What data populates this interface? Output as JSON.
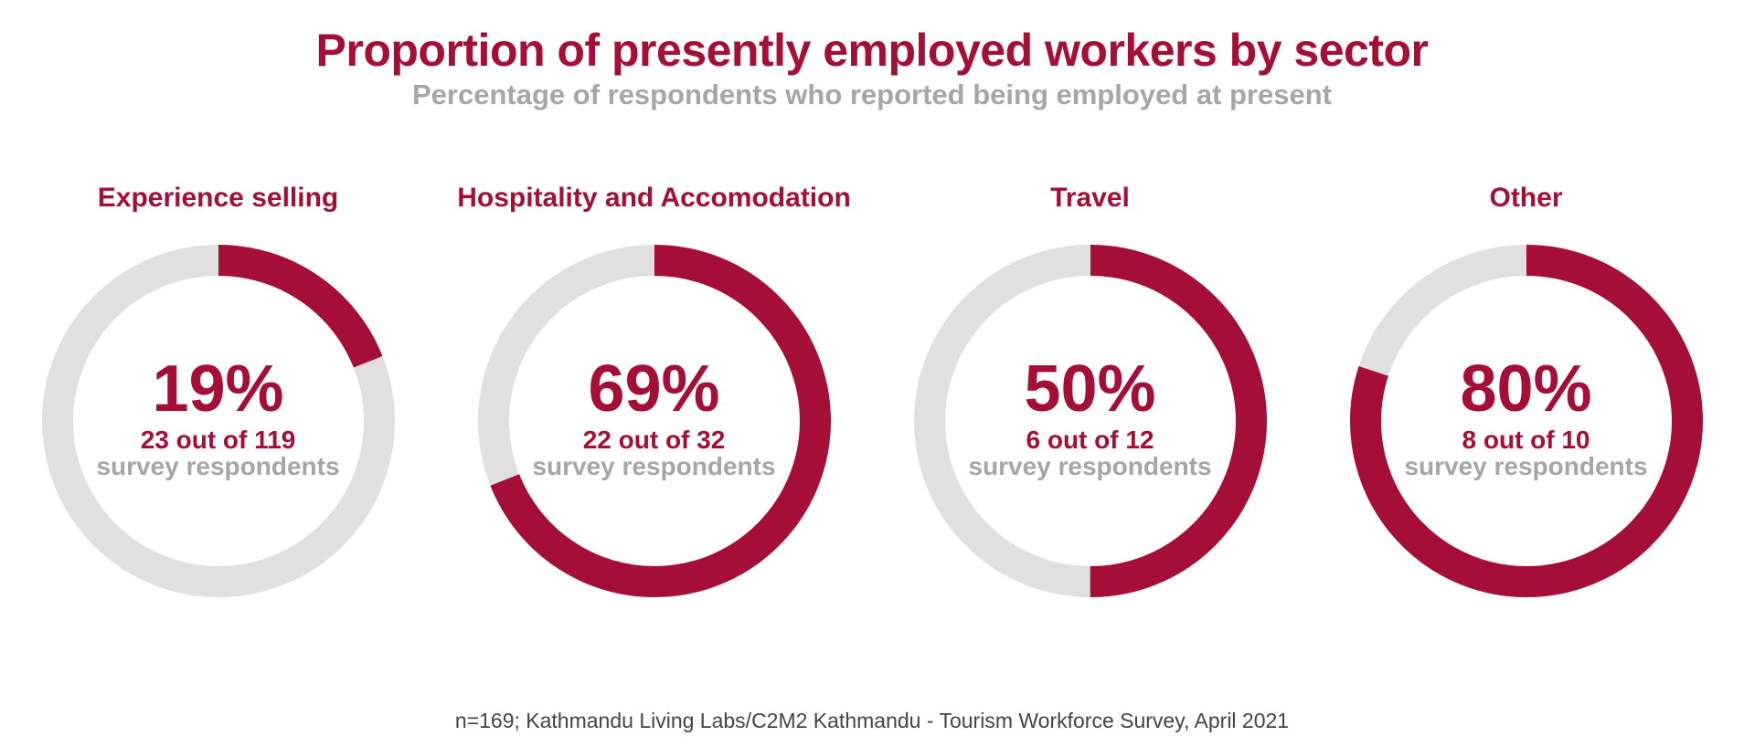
{
  "colors": {
    "accent": "#a50e37",
    "track": "#e0e0e0",
    "muted": "#a6a6a6"
  },
  "chart_data": {
    "type": "pie",
    "title": "Proportion of presently employed workers by sector",
    "subtitle": "Percentage of respondents who reported being employed at present",
    "source": "n=169; Kathmandu Living Labs/C2M2 Kathmandu - Tourism Workforce Survey, April 2021",
    "panels": [
      {
        "name": "Experience selling",
        "percent": 19,
        "percent_label": "19%",
        "count_label": "23 out of 119",
        "unit_label": "survey respondents"
      },
      {
        "name": "Hospitality and Accomodation",
        "percent": 69,
        "percent_label": "69%",
        "count_label": "22 out of 32",
        "unit_label": "survey respondents"
      },
      {
        "name": "Travel",
        "percent": 50,
        "percent_label": "50%",
        "count_label": "6 out of 12",
        "unit_label": "survey respondents"
      },
      {
        "name": "Other",
        "percent": 80,
        "percent_label": "80%",
        "count_label": "8 out of 10",
        "unit_label": "survey respondents"
      }
    ]
  }
}
